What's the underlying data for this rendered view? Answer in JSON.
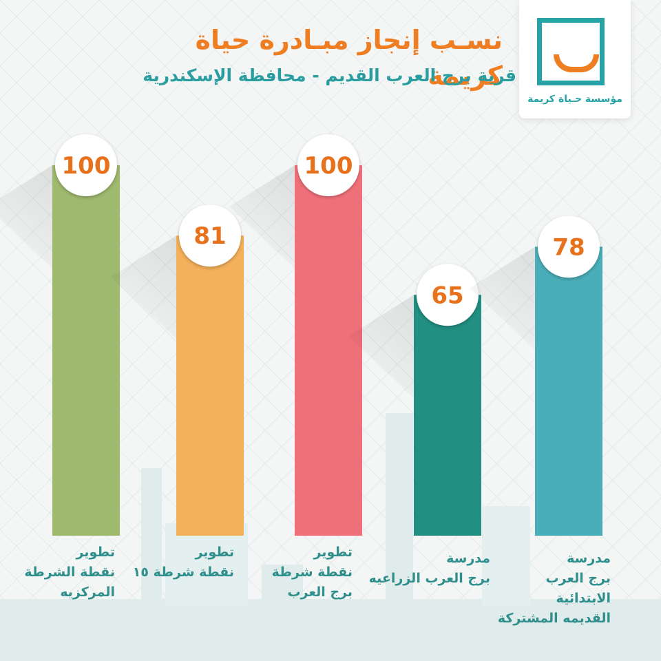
{
  "title": "نسـب إنجاز مبـادرة حياة كريمة",
  "subtitle": "قرية برج العرب القديم -  محافظة الإسكندرية",
  "logo": {
    "text": "مؤسسة حـياة كريمة",
    "icon": "smile-square-icon"
  },
  "colors": {
    "title": "#ef7d22",
    "subtitle": "#2a9da0",
    "value_text": "#e8711c",
    "label_text": "#2f8f8c"
  },
  "chart_data": {
    "type": "bar",
    "categories": [
      "تطوير\nنقطة الشرطة\nالمركزيه",
      "تطوير\nنقطة شرطة ١٥",
      "تطوير\nنقطة شرطة\nبرج العرب",
      "مدرسة\nبرج العرب الزراعيه",
      "مدرسة\nبرج العرب\nالابتدائية\nالقديمه المشتركة"
    ],
    "values": [
      100,
      81,
      100,
      65,
      78
    ],
    "data_labels": [
      "100",
      "81",
      "100",
      "65",
      "78"
    ],
    "colors": [
      "#9fb96e",
      "#f4b05a",
      "#f07079",
      "#218f82",
      "#4aaeb8"
    ],
    "ylim": [
      0,
      100
    ],
    "grid": false
  }
}
